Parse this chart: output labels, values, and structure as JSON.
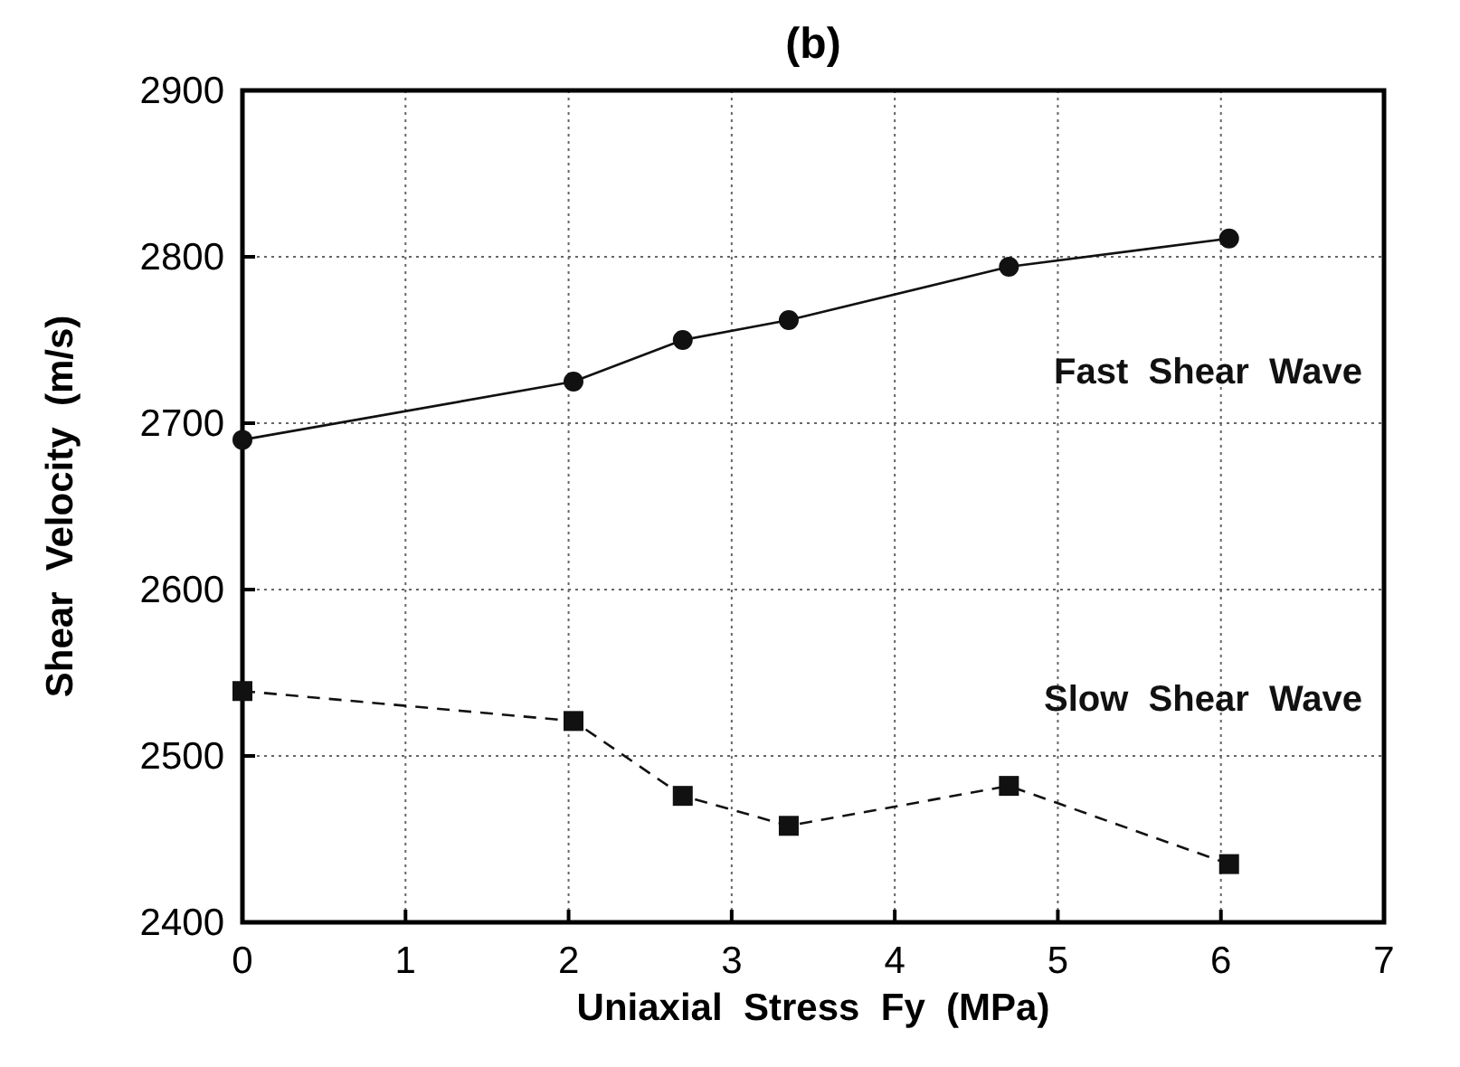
{
  "chart_data": {
    "type": "line",
    "title": "(b)",
    "xlabel": "Uniaxial  Stress  Fy  (MPa)",
    "ylabel": "Shear  Velocity  (m/s)",
    "xlim": [
      0,
      7
    ],
    "xticks": [
      0,
      1,
      2,
      3,
      4,
      5,
      6,
      7
    ],
    "ylim": [
      2400,
      2900
    ],
    "yticks": [
      2400,
      2500,
      2600,
      2700,
      2800,
      2900
    ],
    "grid": true,
    "series": [
      {
        "name": "Fast  Shear  Wave",
        "color": "#111111",
        "marker": "circle",
        "line_style": "solid",
        "x": [
          0,
          2.03,
          2.7,
          3.35,
          4.7,
          6.05
        ],
        "values": [
          2690,
          2725,
          2750,
          2762,
          2794,
          2811
        ]
      },
      {
        "name": "Slow  Shear  Wave",
        "color": "#111111",
        "marker": "square",
        "line_style": "dashed",
        "x": [
          0,
          2.03,
          2.7,
          3.35,
          4.7,
          6.05
        ],
        "values": [
          2539,
          2521,
          2476,
          2458,
          2482,
          2435
        ]
      }
    ]
  }
}
